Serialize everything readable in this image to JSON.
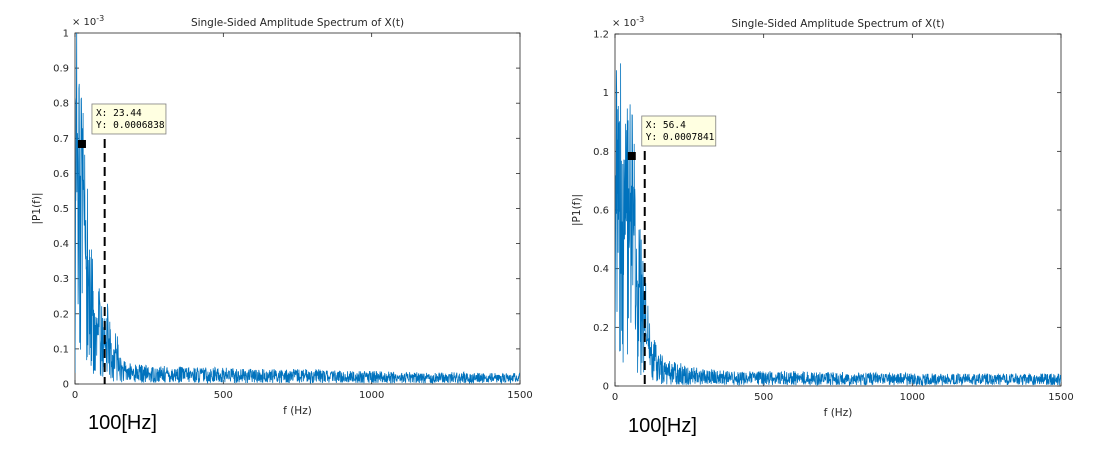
{
  "chart_data": [
    {
      "type": "line",
      "title": "Single-Sided Amplitude Spectrum of X(t)",
      "xlabel": "f (Hz)",
      "ylabel": "|P1(f)|",
      "y_exponent_label": "× 10",
      "y_exponent_power": "-3",
      "xlim": [
        0,
        1500
      ],
      "ylim": [
        0,
        1
      ],
      "x_ticks": [
        "0",
        "500",
        "1000",
        "1500"
      ],
      "x_tick_values": [
        0,
        500,
        1000,
        1500
      ],
      "y_ticks": [
        "0",
        "0.1",
        "0.2",
        "0.3",
        "0.4",
        "0.5",
        "0.6",
        "0.7",
        "0.8",
        "0.9",
        "1"
      ],
      "y_tick_values": [
        0,
        0.1,
        0.2,
        0.3,
        0.4,
        0.5,
        0.6,
        0.7,
        0.8,
        0.9,
        1
      ],
      "line_color": "#0072BD",
      "grid": false,
      "series": [
        {
          "x": [
            0,
            5,
            10,
            15,
            20,
            25,
            30,
            35,
            40,
            45,
            50,
            60,
            70,
            80,
            90,
            100,
            110,
            120,
            130,
            140,
            150,
            160,
            180,
            200,
            250,
            300,
            400,
            500,
            600,
            700,
            800,
            900,
            1000,
            1100,
            1200,
            1300,
            1400,
            1500
          ],
          "values": [
            0.06,
            0.95,
            0.55,
            0.6,
            0.52,
            0.68,
            0.42,
            0.4,
            0.3,
            0.33,
            0.25,
            0.2,
            0.18,
            0.15,
            0.12,
            0.1,
            0.13,
            0.08,
            0.06,
            0.1,
            0.05,
            0.04,
            0.035,
            0.035,
            0.03,
            0.03,
            0.028,
            0.028,
            0.025,
            0.025,
            0.025,
            0.022,
            0.022,
            0.02,
            0.02,
            0.02,
            0.018,
            0.018
          ]
        }
      ],
      "datatip": {
        "x_label": "X: 23.44",
        "y_label": "Y: 0.0006838",
        "x": 23.44,
        "y": 0.6838
      },
      "marker_line_x": 100,
      "annotation": "100[Hz]"
    },
    {
      "type": "line",
      "title": "Single-Sided Amplitude Spectrum of X(t)",
      "xlabel": "f (Hz)",
      "ylabel": "|P1(f)|",
      "y_exponent_label": "× 10",
      "y_exponent_power": "-3",
      "xlim": [
        0,
        1500
      ],
      "ylim": [
        0,
        1.2
      ],
      "x_ticks": [
        "0",
        "500",
        "1000",
        "1500"
      ],
      "x_tick_values": [
        0,
        500,
        1000,
        1500
      ],
      "y_ticks": [
        "0",
        "0.2",
        "0.4",
        "0.6",
        "0.8",
        "1",
        "1.2"
      ],
      "y_tick_values": [
        0,
        0.2,
        0.4,
        0.6,
        0.8,
        1,
        1.2
      ],
      "line_color": "#0072BD",
      "grid": false,
      "series": [
        {
          "x": [
            0,
            5,
            10,
            15,
            20,
            30,
            40,
            50,
            56.4,
            60,
            70,
            80,
            90,
            100,
            110,
            120,
            140,
            160,
            180,
            200,
            250,
            300,
            400,
            500,
            600,
            700,
            800,
            900,
            1000,
            1100,
            1200,
            1300,
            1400,
            1500
          ],
          "values": [
            0.2,
            1.04,
            0.5,
            0.55,
            0.6,
            0.45,
            0.55,
            0.5,
            0.78,
            0.7,
            0.3,
            0.35,
            0.25,
            0.2,
            0.15,
            0.12,
            0.08,
            0.06,
            0.05,
            0.05,
            0.04,
            0.035,
            0.03,
            0.03,
            0.03,
            0.028,
            0.028,
            0.028,
            0.025,
            0.025,
            0.025,
            0.025,
            0.025,
            0.025
          ]
        }
      ],
      "datatip": {
        "x_label": "X: 56.4",
        "y_label": "Y: 0.0007841",
        "x": 56.4,
        "y": 0.7841
      },
      "marker_line_x": 100,
      "annotation": "100[Hz]"
    }
  ]
}
